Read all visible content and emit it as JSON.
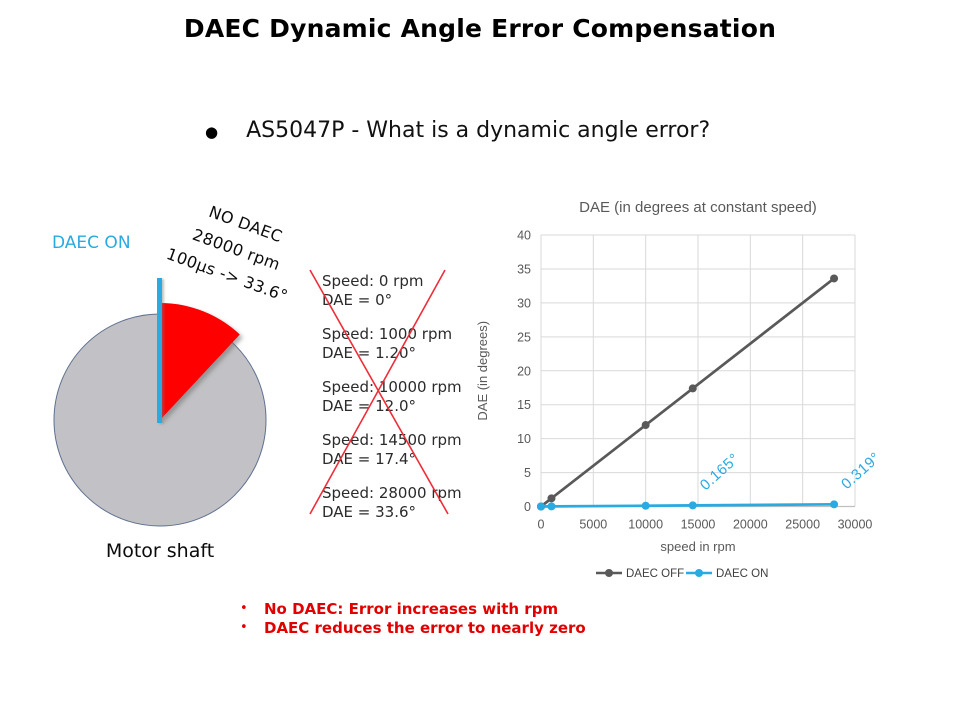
{
  "title": "DAEC Dynamic Angle Error Compensation",
  "subtitle_bullet": "AS5047P - What is a dynamic angle error?",
  "colors": {
    "accent_blue": "#29ABE2",
    "wedge_red": "#FE0000",
    "cross_red": "#ED2E38",
    "conclusion_red": "#E00000",
    "series_gray": "#595959",
    "grid_gray": "#D9D9D9",
    "axis_gray": "#BFBFBF",
    "shaft_fill": "#C2C2C6",
    "shaft_border": "#5F7090"
  },
  "motor_diagram": {
    "daec_on_label": "DAEC ON",
    "no_daec_lines": [
      "NO DAEC",
      "28000 rpm",
      "100µs -> 33.6°"
    ],
    "caption": "Motor shaft"
  },
  "speed_table": [
    {
      "speed": "Speed: 0 rpm",
      "dae": "DAE = 0°"
    },
    {
      "speed": "Speed: 1000 rpm",
      "dae": "DAE = 1.20°"
    },
    {
      "speed": "Speed: 10000 rpm",
      "dae": "DAE = 12.0°"
    },
    {
      "speed": "Speed: 14500 rpm",
      "dae": "DAE = 17.4°"
    },
    {
      "speed": "Speed: 28000 rpm",
      "dae": "DAE = 33.6°"
    }
  ],
  "chart_data": {
    "type": "line",
    "title": "DAE (in degrees at constant speed)",
    "xlabel": "speed in rpm",
    "ylabel": "DAE (in degrees)",
    "xlim": [
      0,
      30000
    ],
    "xtick_step": 5000,
    "ylim": [
      0,
      40
    ],
    "ytick_step": 5,
    "grid": true,
    "legend_position": "bottom",
    "x": [
      0,
      1000,
      10000,
      14500,
      28000
    ],
    "series": [
      {
        "name": "DAEC OFF",
        "color": "#595959",
        "values": [
          0,
          1.2,
          12.0,
          17.4,
          33.6
        ]
      },
      {
        "name": "DAEC ON",
        "color": "#29ABE2",
        "values": [
          0,
          0.02,
          0.11,
          0.165,
          0.319
        ]
      }
    ],
    "annotations": [
      {
        "text": "0.165°",
        "x": 14500,
        "y": 0.165
      },
      {
        "text": "0.319°",
        "x": 28000,
        "y": 0.319
      }
    ]
  },
  "conclusions": [
    "No DAEC: Error increases with rpm",
    "DAEC reduces the error to nearly zero"
  ]
}
